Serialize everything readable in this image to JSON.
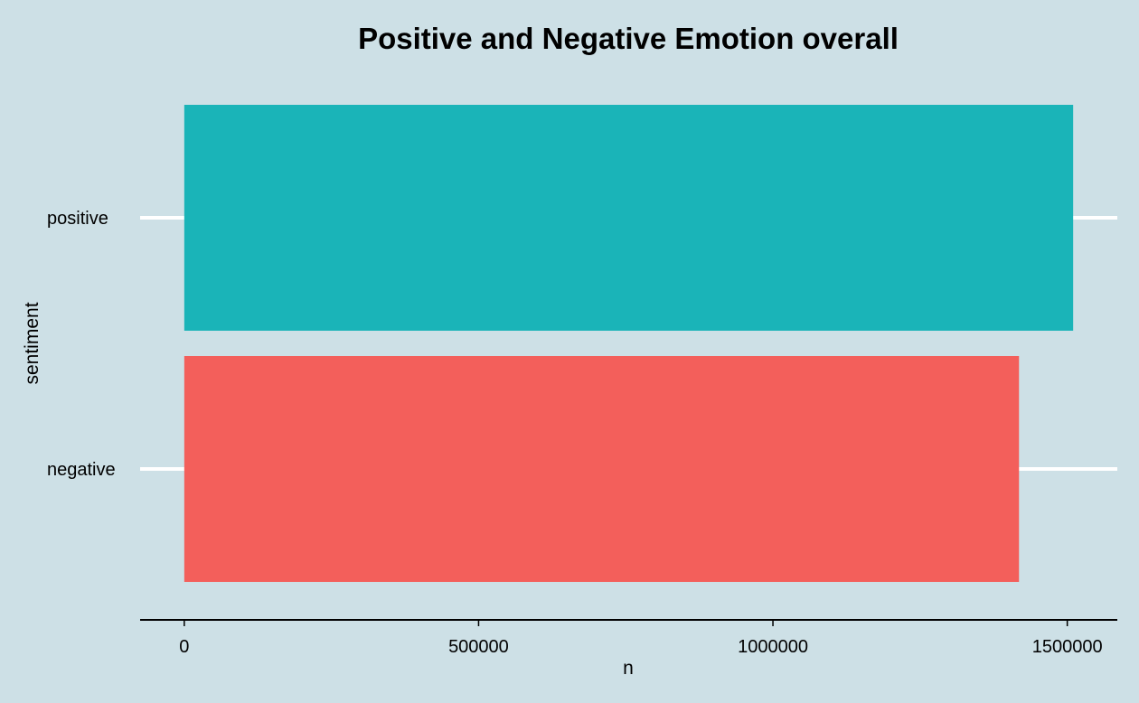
{
  "colors": {
    "background": "#cde0e6",
    "gridline": "#ffffff",
    "axis": "#000000",
    "positive": "#1ab4b8",
    "negative": "#f35f5b"
  },
  "chart_data": {
    "type": "bar",
    "orientation": "horizontal",
    "title": "Positive and Negative Emotion overall",
    "xlabel": "n",
    "ylabel": "sentiment",
    "categories": [
      "positive",
      "negative"
    ],
    "values": [
      1510000,
      1418000
    ],
    "bar_colors": [
      "#1ab4b8",
      "#f35f5b"
    ],
    "xlim": [
      -75000,
      1585000
    ],
    "xticks": [
      0,
      500000,
      1000000,
      1500000
    ],
    "xtick_labels": [
      "0",
      "500000",
      "1000000",
      "1500000"
    ],
    "grid": "major-y",
    "legend": "none"
  }
}
